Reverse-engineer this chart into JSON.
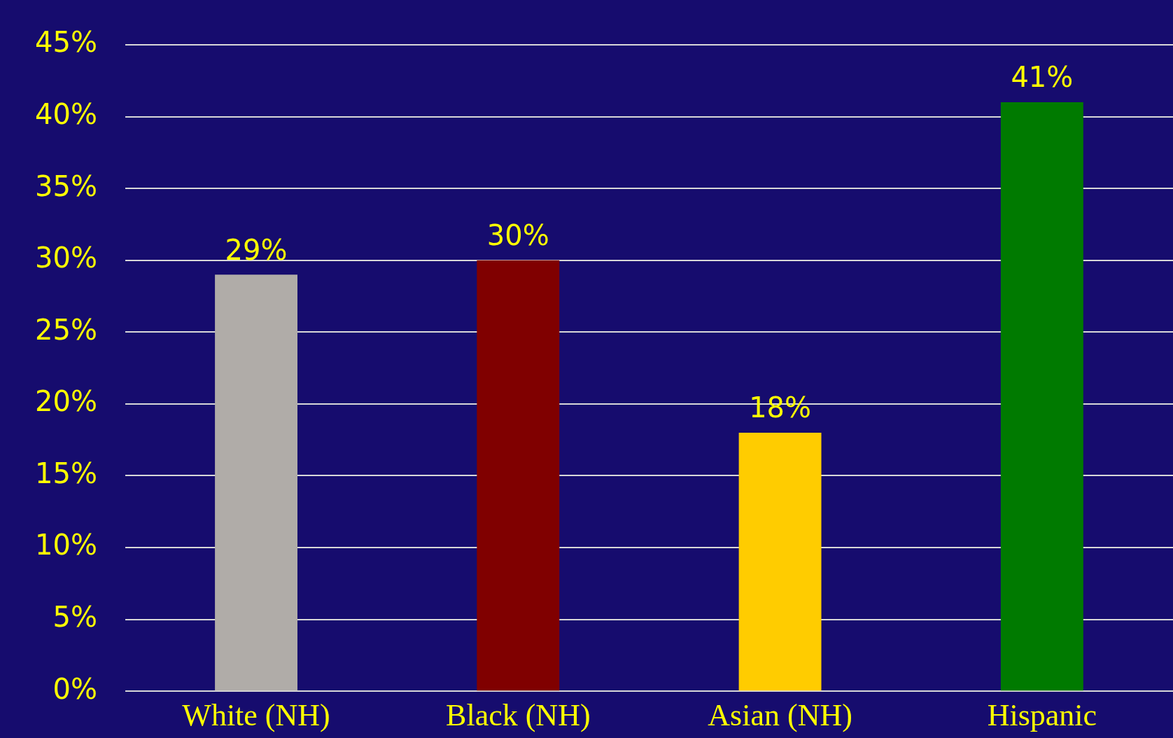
{
  "chart_data": {
    "type": "bar",
    "categories": [
      "White (NH)",
      "Black (NH)",
      "Asian (NH)",
      "Hispanic"
    ],
    "values": [
      29,
      30,
      18,
      41
    ],
    "colors": [
      "#b0aca8",
      "#800000",
      "#ffcc00",
      "#007a00"
    ],
    "value_labels": [
      "29%",
      "30%",
      "18%",
      "41%"
    ],
    "ylim": [
      0,
      45
    ],
    "yticks": [
      {
        "value": 0,
        "label": "0%"
      },
      {
        "value": 5,
        "label": "5%"
      },
      {
        "value": 10,
        "label": "10%"
      },
      {
        "value": 15,
        "label": "15%"
      },
      {
        "value": 20,
        "label": "20%"
      },
      {
        "value": 25,
        "label": "25%"
      },
      {
        "value": 30,
        "label": "30%"
      },
      {
        "value": 35,
        "label": "35%"
      },
      {
        "value": 40,
        "label": "40%"
      },
      {
        "value": 45,
        "label": "45%"
      }
    ],
    "grid": "y",
    "legend": false
  }
}
